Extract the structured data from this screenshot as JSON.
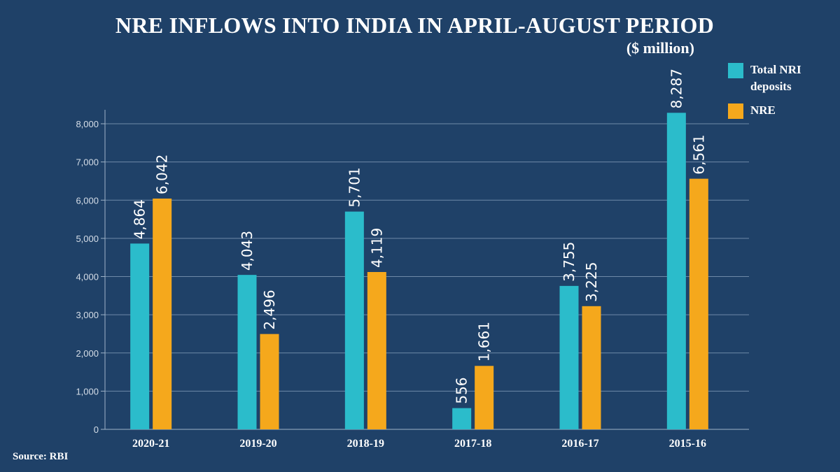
{
  "chart_data": {
    "type": "bar",
    "title": "NRE INFLOWS INTO INDIA IN APRIL-AUGUST PERIOD",
    "subtitle": "($ million)",
    "categories": [
      "2020-21",
      "2019-20",
      "2018-19",
      "2017-18",
      "2016-17",
      "2015-16"
    ],
    "series": [
      {
        "name": "Total NRI deposits",
        "color": "#2bbccb",
        "values": [
          4864,
          4043,
          5701,
          556,
          3755,
          8287
        ],
        "labels": [
          "4,864",
          "4,043",
          "5,701",
          "556",
          "3,755",
          "8,287"
        ]
      },
      {
        "name": "NRE",
        "color": "#f5a81c",
        "values": [
          6042,
          2496,
          4119,
          1661,
          3225,
          6561
        ],
        "labels": [
          "6,042",
          "2,496",
          "4,119",
          "1,661",
          "3,225",
          "6,561"
        ]
      }
    ],
    "yticks": [
      0,
      1000,
      2000,
      3000,
      4000,
      5000,
      6000,
      7000,
      8000
    ],
    "ytick_labels": [
      "0",
      "1,000",
      "2,000",
      "3,000",
      "4,000",
      "5,000",
      "6,000",
      "7,000",
      "8,000"
    ],
    "ylim": [
      0,
      8000
    ],
    "xlabel": "",
    "ylabel": "",
    "grid": true,
    "legend": "top-right"
  },
  "source": "Source: RBI"
}
